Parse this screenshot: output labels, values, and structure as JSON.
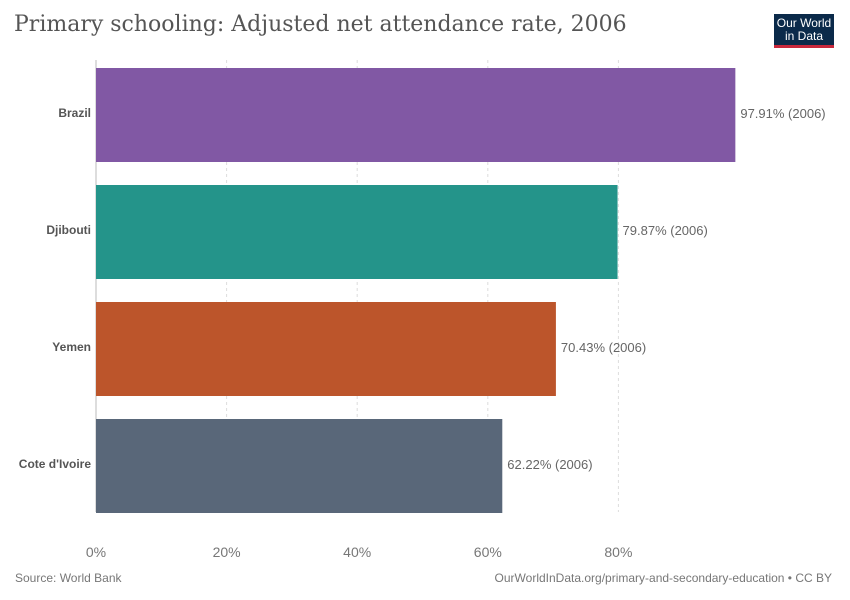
{
  "header": {
    "title": "Primary schooling: Adjusted net attendance rate, 2006",
    "logo_line1": "Our World",
    "logo_line2": "in Data"
  },
  "footer": {
    "source": "Source: World Bank",
    "attribution": "OurWorldInData.org/primary-and-secondary-education • CC BY"
  },
  "colors": {
    "Brazil": "#8158a4",
    "Djibouti": "#24948a",
    "Yemen": "#bc552b",
    "Cote d'Ivoire": "#596779",
    "logo_bg": "#0b2a4a",
    "logo_accent": "#c8283c"
  },
  "chart_data": {
    "type": "bar",
    "orientation": "horizontal",
    "title": "Primary schooling: Adjusted net attendance rate, 2006",
    "categories": [
      "Brazil",
      "Djibouti",
      "Yemen",
      "Cote d'Ivoire"
    ],
    "values": [
      97.91,
      79.87,
      70.43,
      62.22
    ],
    "value_labels": [
      "97.91% (2006)",
      "79.87% (2006)",
      "70.43% (2006)",
      "62.22% (2006)"
    ],
    "xlim": [
      0,
      100
    ],
    "xticks": [
      0,
      20,
      40,
      60,
      80
    ],
    "xtick_labels": [
      "0%",
      "20%",
      "40%",
      "60%",
      "80%"
    ],
    "grid": true,
    "legend": false
  }
}
